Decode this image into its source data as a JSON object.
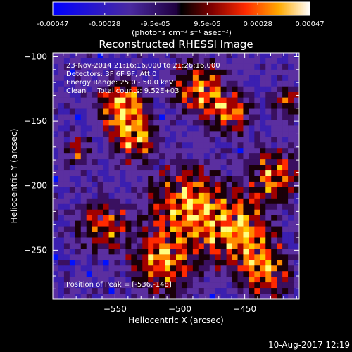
{
  "chart_data": {
    "type": "heatmap",
    "title": "Reconstructed RHESSI Image",
    "xlabel": "Heliocentric X (arcsec)",
    "ylabel": "Heliocentric Y (arcsec)",
    "xlim": [
      -598,
      -408
    ],
    "ylim": [
      -288,
      -97
    ],
    "x_ticks": [
      -550,
      -500,
      -450
    ],
    "y_ticks": [
      -100,
      -150,
      -200,
      -250
    ],
    "colorbar": {
      "ticks": [
        "-0.00047",
        "-0.00028",
        "-9.5e-05",
        "9.5e-05",
        "0.00028",
        "0.00047"
      ],
      "range": [
        -0.00047,
        0.00047
      ],
      "units_label": "(photons cm⁻² s⁻¹ asec⁻²)"
    },
    "annotations": [
      "23-Nov-2014 21:16:16.000 to 21:26:16.000",
      "Detectors: 3F 6F 9F, Att 0",
      "Energy Range: 25.0 - 50.0 keV",
      "Clean     Total counts: 9.52E+03"
    ],
    "peak_label": "Position of Peak = [-536,-148]",
    "colormap": [
      "#0000ff",
      "#4b1c9a",
      "#6a32a8",
      "#2a004f",
      "#000000",
      "#8b0000",
      "#ff3300",
      "#ff9900",
      "#ffff00",
      "#ffffff"
    ]
  },
  "footer": {
    "date": "10-Aug-2017 12:19"
  }
}
